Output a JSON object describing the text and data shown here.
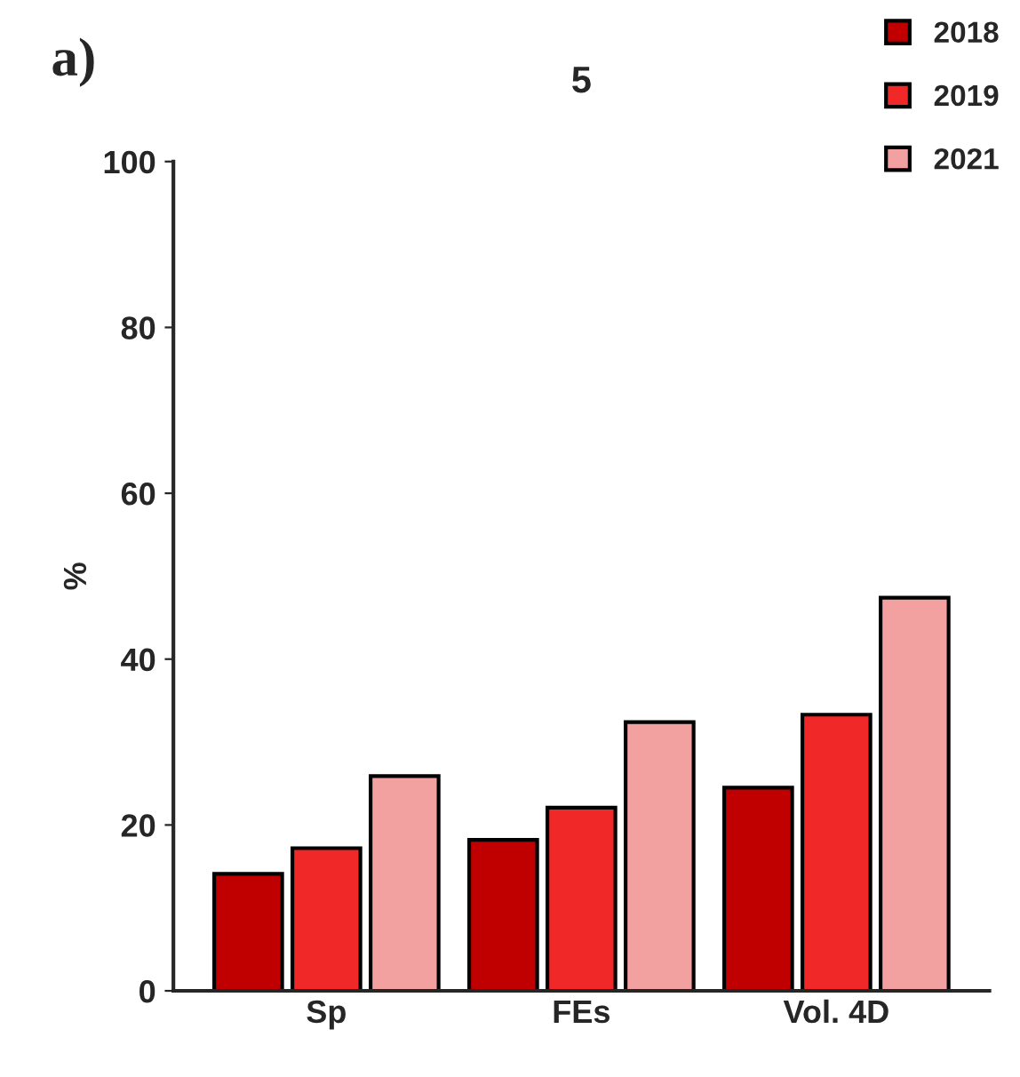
{
  "chart_data": {
    "type": "bar",
    "title": "5",
    "ylabel": "%",
    "annotations": [
      "a)"
    ],
    "categories": [
      "Sp",
      "FEs",
      "Vol. 4D"
    ],
    "series": [
      {
        "name": "2018",
        "color": "#c00000",
        "values": [
          14.1,
          18.2,
          24.5
        ]
      },
      {
        "name": "2019",
        "color": "#f02828",
        "values": [
          17.2,
          22.1,
          33.3
        ]
      },
      {
        "name": "2021",
        "color": "#f2a0a0",
        "values": [
          25.9,
          32.4,
          47.4
        ]
      }
    ],
    "ylim": [
      0,
      100
    ],
    "yticks": [
      0,
      20,
      40,
      60,
      80,
      100
    ],
    "grid": false,
    "legend": "top right"
  }
}
